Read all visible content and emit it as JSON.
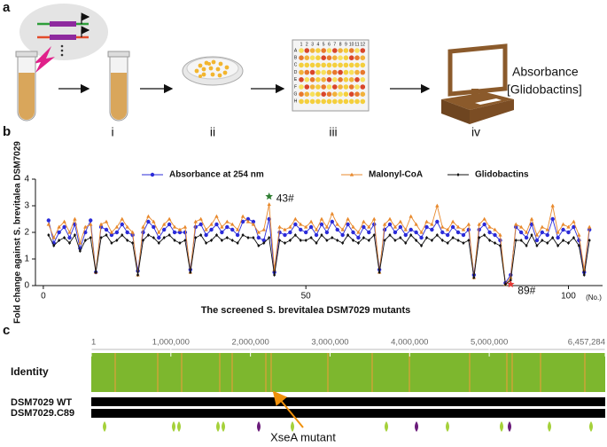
{
  "panel_a": {
    "label": "a",
    "steps": [
      "i",
      "ii",
      "iii",
      "iv"
    ],
    "plate_columns": [
      "1",
      "2",
      "3",
      "4",
      "5",
      "6",
      "7",
      "8",
      "9",
      "10",
      "11",
      "12"
    ],
    "plate_rows": [
      "A",
      "B",
      "C",
      "D",
      "E",
      "F",
      "G",
      "H"
    ],
    "readout": [
      "Absorbance",
      "[Glidobactins]"
    ]
  },
  "chart_data": {
    "type": "line",
    "label": "b",
    "ylabel": "Fold change against S. brevitalea DSM7029",
    "xlabel": "The screened S. brevitalea DSM7029 mutants",
    "xunit": "(No.)",
    "xlim": [
      -1.5,
      106.5
    ],
    "xticks": [
      0,
      50,
      100
    ],
    "ylim": [
      0,
      4
    ],
    "yticks": [
      0,
      1,
      2,
      3,
      4
    ],
    "grid": false,
    "legend": "top",
    "x": [
      1,
      2,
      3,
      4,
      5,
      6,
      7,
      8,
      9,
      10,
      11,
      12,
      13,
      14,
      15,
      16,
      17,
      18,
      19,
      20,
      21,
      22,
      23,
      24,
      25,
      26,
      27,
      28,
      29,
      30,
      31,
      32,
      33,
      34,
      35,
      36,
      37,
      38,
      39,
      40,
      41,
      42,
      43,
      44,
      45,
      46,
      47,
      48,
      49,
      50,
      51,
      52,
      53,
      54,
      55,
      56,
      57,
      58,
      59,
      60,
      61,
      62,
      63,
      64,
      65,
      66,
      67,
      68,
      69,
      70,
      71,
      72,
      73,
      74,
      75,
      76,
      77,
      78,
      79,
      80,
      81,
      82,
      83,
      84,
      85,
      86,
      87,
      88,
      89,
      90,
      91,
      92,
      93,
      94,
      95,
      96,
      97,
      98,
      99,
      100,
      101,
      102,
      103,
      104
    ],
    "series": [
      {
        "name": "Absorbance at 254 nm",
        "color": "#2b2bd9",
        "marker": "circle",
        "values": [
          2.45,
          1.6,
          2.0,
          2.2,
          1.8,
          2.3,
          1.4,
          2.0,
          2.45,
          0.5,
          2.2,
          2.1,
          1.9,
          2.0,
          2.3,
          2.0,
          1.9,
          0.55,
          2.0,
          2.4,
          2.2,
          1.8,
          2.1,
          2.3,
          2.0,
          2.0,
          2.0,
          0.6,
          2.2,
          2.3,
          1.9,
          2.1,
          2.3,
          2.0,
          2.2,
          2.1,
          1.9,
          2.4,
          2.5,
          2.4,
          1.8,
          1.7,
          2.5,
          0.5,
          2.0,
          1.9,
          2.0,
          2.3,
          2.1,
          2.0,
          2.2,
          1.9,
          2.3,
          2.0,
          2.4,
          2.1,
          1.9,
          2.3,
          2.0,
          1.8,
          2.2,
          2.0,
          2.3,
          0.6,
          2.1,
          2.3,
          2.0,
          2.2,
          1.9,
          2.1,
          2.0,
          1.8,
          2.2,
          2.1,
          2.4,
          2.0,
          1.9,
          2.2,
          2.0,
          1.9,
          2.1,
          0.4,
          2.1,
          2.3,
          2.0,
          1.9,
          1.7,
          0.1,
          0.4,
          2.2,
          2.0,
          1.8,
          2.3,
          1.7,
          2.0,
          1.9,
          2.5,
          1.8,
          2.1,
          2.0,
          2.2,
          1.7,
          0.5,
          2.1
        ]
      },
      {
        "name": "Malonyl-CoA",
        "color": "#e8892c",
        "marker": "triangle",
        "values": [
          2.3,
          1.8,
          2.2,
          2.4,
          2.0,
          2.5,
          1.6,
          2.2,
          2.3,
          0.5,
          2.3,
          2.4,
          2.0,
          2.2,
          2.5,
          2.2,
          2.0,
          0.4,
          2.2,
          2.6,
          2.4,
          2.0,
          2.3,
          2.5,
          2.2,
          2.1,
          2.2,
          0.5,
          2.4,
          2.5,
          2.1,
          2.3,
          2.6,
          2.2,
          2.4,
          2.3,
          2.1,
          2.6,
          2.4,
          2.3,
          2.0,
          2.1,
          3.05,
          0.6,
          2.2,
          2.1,
          2.2,
          2.5,
          2.3,
          2.2,
          2.4,
          2.1,
          2.5,
          2.2,
          2.7,
          2.3,
          2.1,
          2.5,
          2.2,
          2.0,
          2.4,
          2.2,
          2.5,
          0.5,
          2.3,
          2.5,
          2.2,
          2.4,
          2.1,
          2.6,
          2.3,
          2.0,
          2.4,
          2.3,
          3.0,
          2.2,
          2.1,
          2.4,
          2.2,
          2.1,
          2.3,
          0.3,
          2.3,
          2.5,
          2.2,
          2.1,
          1.9,
          0.05,
          0.3,
          2.3,
          2.2,
          2.0,
          2.5,
          1.9,
          2.2,
          2.1,
          3.0,
          2.0,
          2.3,
          2.2,
          2.4,
          1.9,
          0.6,
          2.2
        ]
      },
      {
        "name": "Glidobactins",
        "color": "#111111",
        "marker": "diamond",
        "values": [
          1.9,
          1.5,
          1.7,
          1.8,
          1.6,
          1.9,
          1.3,
          1.7,
          1.8,
          0.5,
          1.8,
          1.9,
          1.6,
          1.7,
          1.9,
          1.7,
          1.6,
          0.4,
          1.7,
          1.9,
          1.8,
          1.6,
          1.8,
          1.9,
          1.7,
          1.6,
          1.7,
          0.5,
          1.8,
          1.9,
          1.6,
          1.7,
          1.9,
          1.7,
          1.8,
          1.7,
          1.6,
          1.9,
          1.8,
          1.8,
          1.5,
          1.6,
          1.8,
          0.4,
          1.7,
          1.6,
          1.7,
          1.9,
          1.7,
          1.7,
          1.8,
          1.6,
          1.9,
          1.7,
          1.8,
          1.7,
          1.6,
          1.9,
          1.7,
          1.6,
          1.8,
          1.7,
          1.9,
          0.5,
          1.7,
          1.9,
          1.7,
          1.8,
          1.6,
          1.9,
          1.7,
          1.5,
          1.8,
          1.7,
          1.9,
          1.7,
          1.6,
          1.8,
          1.7,
          1.6,
          1.7,
          0.3,
          1.8,
          1.9,
          1.7,
          1.6,
          1.5,
          0.05,
          0.2,
          1.7,
          1.7,
          1.5,
          1.9,
          1.5,
          1.7,
          1.6,
          1.8,
          1.5,
          1.7,
          1.6,
          1.8,
          1.5,
          0.4,
          1.7
        ]
      }
    ],
    "annotations": [
      {
        "text": "43#",
        "x": 43,
        "y": 3.35,
        "color": "#2e7d32"
      },
      {
        "text": "89#",
        "x": 89,
        "y": 0.05,
        "color": "#e53935"
      }
    ]
  },
  "panel_c": {
    "label": "c",
    "xlim": [
      1,
      6457284
    ],
    "xticks": [
      1,
      {
        "value": 1000000,
        "label": "1,000,000"
      },
      {
        "value": 2000000,
        "label": "2,000,000"
      },
      {
        "value": 3000000,
        "label": "3,000,000"
      },
      {
        "value": 4000000,
        "label": "4,000,000"
      },
      {
        "value": 5000000,
        "label": "5,000,000"
      },
      {
        "value": 6457284,
        "label": "6,457,284"
      }
    ],
    "tracks": [
      "Identity",
      "DSM7029 WT",
      "DSM7029.C89"
    ],
    "annotation": "XseA mutant"
  }
}
